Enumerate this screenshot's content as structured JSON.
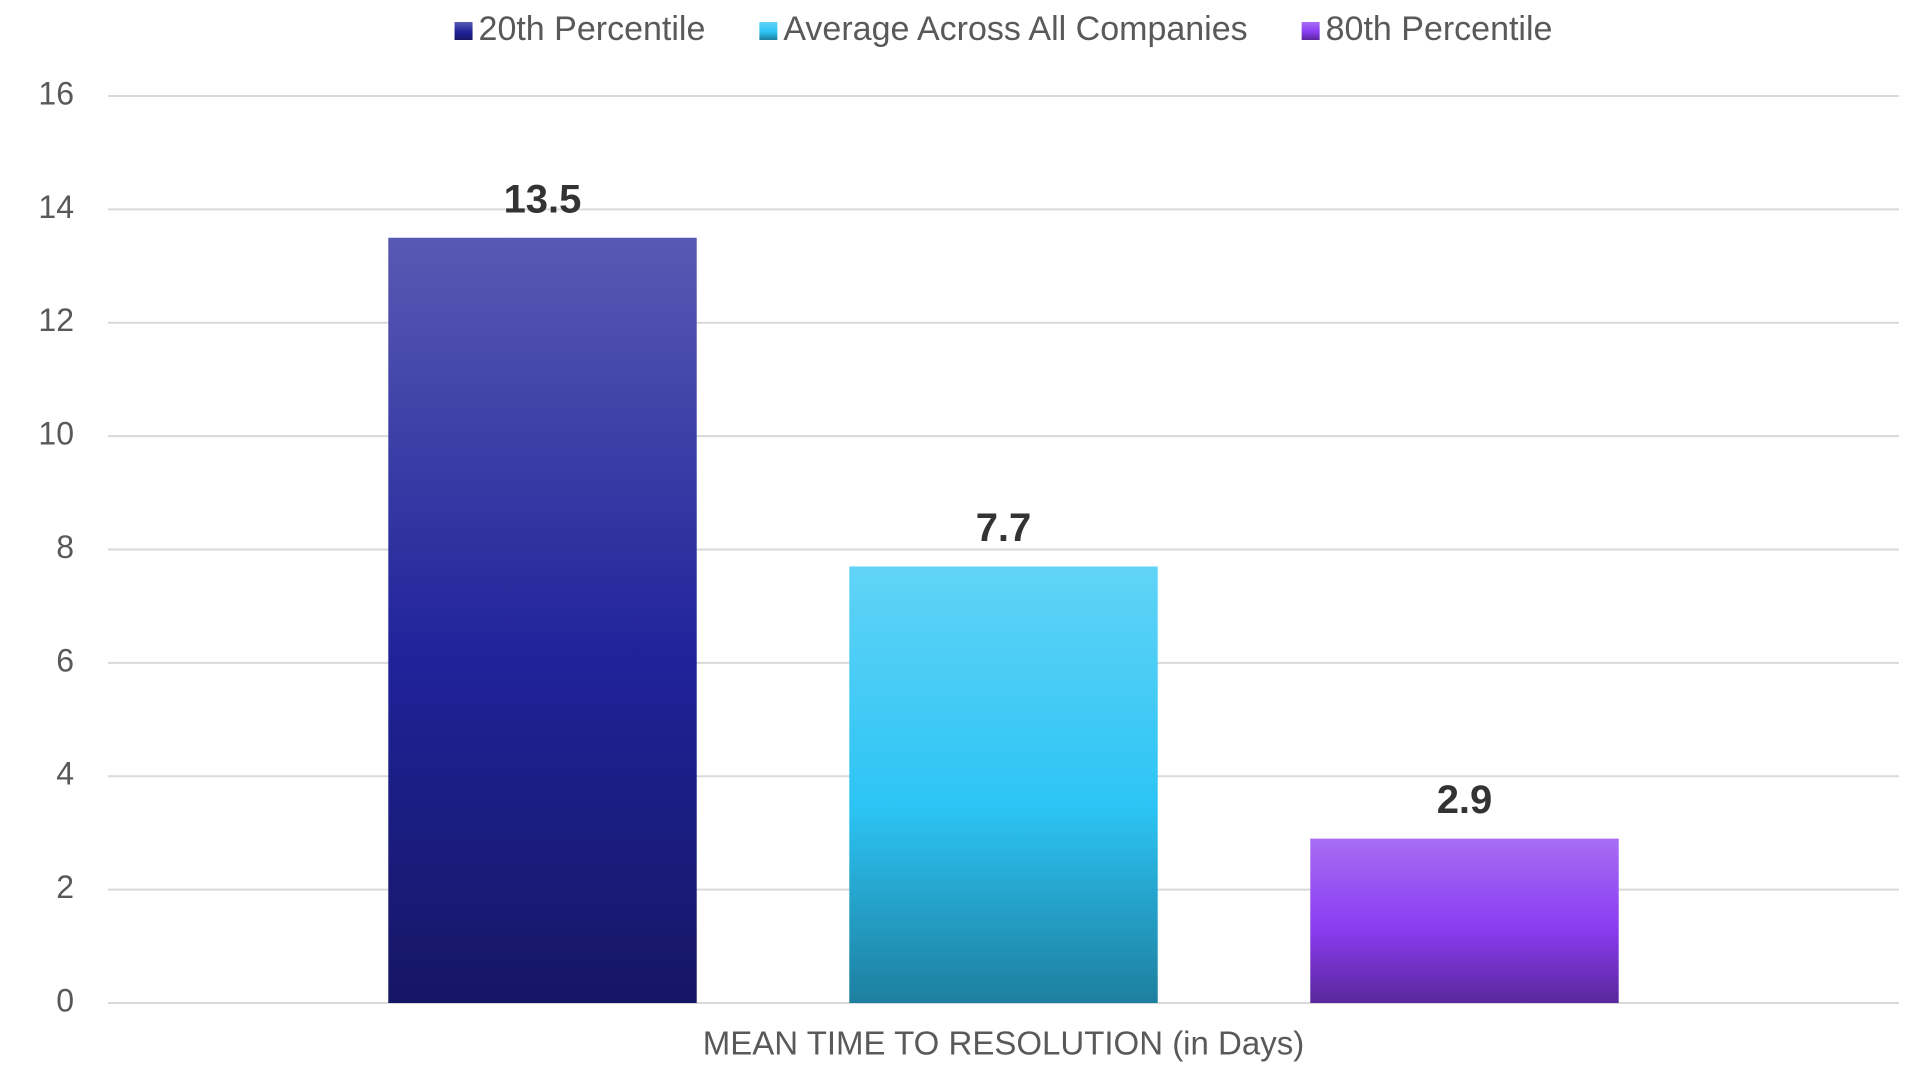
{
  "chart_data": {
    "type": "bar",
    "categories": [
      "MEAN TIME TO RESOLUTION (in Days)"
    ],
    "series": [
      {
        "name": "20th Percentile",
        "color": "#20229a",
        "values": [
          13.5
        ]
      },
      {
        "name": "Average Across All Companies",
        "color": "#2cc4f4",
        "values": [
          7.7
        ]
      },
      {
        "name": "80th Percentile",
        "color": "#8a3cf0",
        "values": [
          2.9
        ]
      }
    ],
    "ylim": [
      0,
      16
    ],
    "yticks": [
      0,
      2,
      4,
      6,
      8,
      10,
      12,
      14,
      16
    ],
    "grid": true,
    "legend": "top"
  }
}
